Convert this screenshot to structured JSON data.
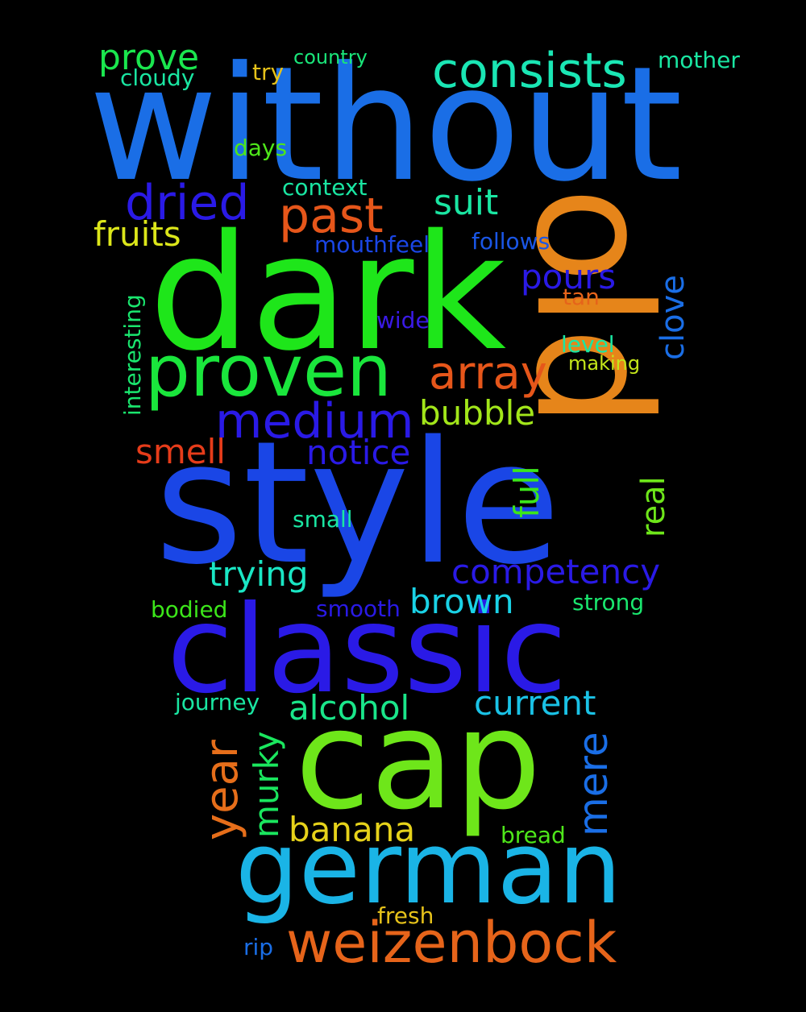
{
  "background": "#000000",
  "words": [
    {
      "text": "without",
      "color": "#1a6ee6"
    },
    {
      "text": "dark",
      "color": "#1ee61a"
    },
    {
      "text": "old",
      "color": "#e6851a"
    },
    {
      "text": "style",
      "color": "#1a46e6"
    },
    {
      "text": "classic",
      "color": "#2a1ae6"
    },
    {
      "text": "cap",
      "color": "#6ee61a"
    },
    {
      "text": "german",
      "color": "#1ab4e6"
    },
    {
      "text": "weizenbock",
      "color": "#e6641a"
    },
    {
      "text": "proven",
      "color": "#1ae63c"
    },
    {
      "text": "consists",
      "color": "#1ae6b4"
    },
    {
      "text": "dried",
      "color": "#2a1ae6"
    },
    {
      "text": "past",
      "color": "#e6561a"
    },
    {
      "text": "medium",
      "color": "#2a1ae6"
    },
    {
      "text": "array",
      "color": "#e6561a"
    },
    {
      "text": "prove",
      "color": "#1ae64e"
    },
    {
      "text": "suit",
      "color": "#1ae6a2"
    },
    {
      "text": "fruits",
      "color": "#dce61a"
    },
    {
      "text": "pours",
      "color": "#2a1ae6"
    },
    {
      "text": "clove",
      "color": "#1a6ee6"
    },
    {
      "text": "bubble",
      "color": "#a2e61a"
    },
    {
      "text": "smell",
      "color": "#e63c1a"
    },
    {
      "text": "notice",
      "color": "#2a1ae6"
    },
    {
      "text": "full",
      "color": "#3ce61a"
    },
    {
      "text": "real",
      "color": "#6ee61a"
    },
    {
      "text": "competency",
      "color": "#2a1ae6"
    },
    {
      "text": "trying",
      "color": "#1ae6c4"
    },
    {
      "text": "brown",
      "color": "#1ad2e6"
    },
    {
      "text": "current",
      "color": "#1ac2e6"
    },
    {
      "text": "alcohol",
      "color": "#1ae68a"
    },
    {
      "text": "year",
      "color": "#e66e1a"
    },
    {
      "text": "murky",
      "color": "#1ae65e"
    },
    {
      "text": "mere",
      "color": "#1a6ee6"
    },
    {
      "text": "banana",
      "color": "#e6d21a"
    },
    {
      "text": "cloudy",
      "color": "#1ae6a2"
    },
    {
      "text": "try",
      "color": "#e6c21a"
    },
    {
      "text": "country",
      "color": "#1ae67a"
    },
    {
      "text": "mother",
      "color": "#1ae6a2"
    },
    {
      "text": "days",
      "color": "#4ee61a"
    },
    {
      "text": "context",
      "color": "#1ae6a2"
    },
    {
      "text": "mouthfeel",
      "color": "#1a46e6"
    },
    {
      "text": "follows",
      "color": "#1a56e6"
    },
    {
      "text": "tan",
      "color": "#e6641a"
    },
    {
      "text": "wide",
      "color": "#3a1ae6"
    },
    {
      "text": "level",
      "color": "#1ae6a2"
    },
    {
      "text": "making",
      "color": "#c4e61a"
    },
    {
      "text": "interesting",
      "color": "#1ae66e"
    },
    {
      "text": "small",
      "color": "#1ae6a2"
    },
    {
      "text": "bodied",
      "color": "#3ce61a"
    },
    {
      "text": "smooth",
      "color": "#2a1ae6"
    },
    {
      "text": "strong",
      "color": "#1ae66e"
    },
    {
      "text": "journey",
      "color": "#1ae6a2"
    },
    {
      "text": "bread",
      "color": "#4ee61a"
    },
    {
      "text": "fresh",
      "color": "#e6c21a"
    },
    {
      "text": "rip",
      "color": "#1a6ee6"
    }
  ]
}
